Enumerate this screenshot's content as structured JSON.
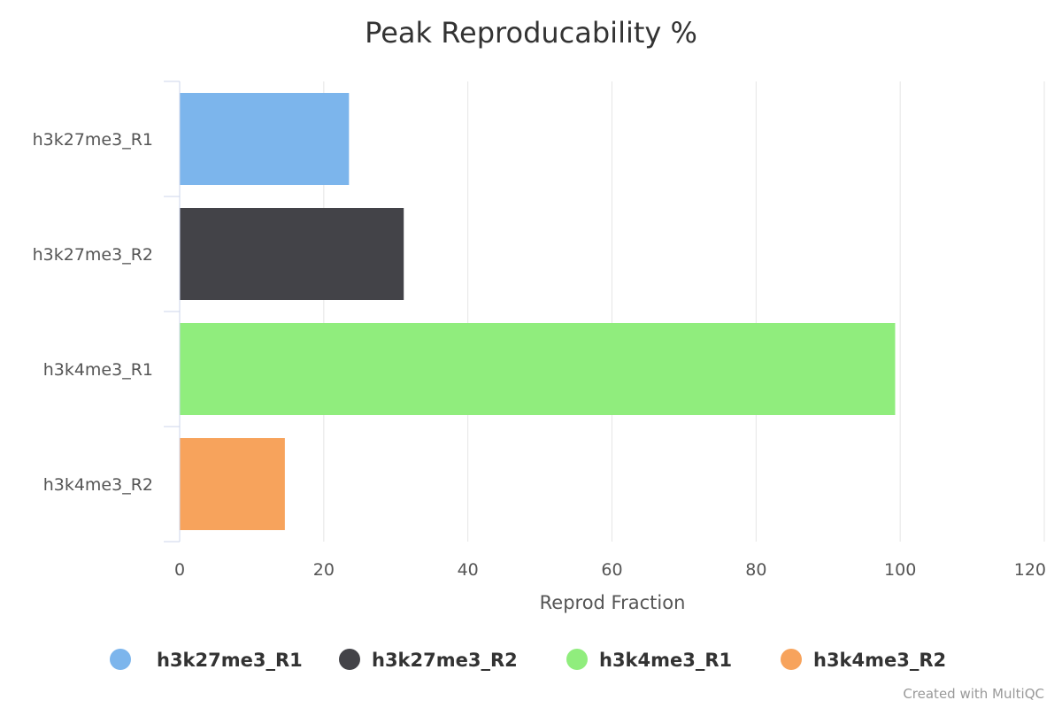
{
  "chart_data": {
    "type": "bar",
    "orientation": "horizontal",
    "title": "Peak Reproducability %",
    "xlabel": "Reprod Fraction",
    "ylabel": "",
    "xlim": [
      0,
      120
    ],
    "xticks": [
      0,
      20,
      40,
      60,
      80,
      100,
      120
    ],
    "categories": [
      "h3k27me3_R1",
      "h3k27me3_R2",
      "h3k4me3_R1",
      "h3k4me3_R2"
    ],
    "values": [
      23.5,
      31.1,
      99.3,
      14.6
    ],
    "colors": [
      "#7cb5ec",
      "#434348",
      "#90ed7d",
      "#f7a35c"
    ],
    "grid": true,
    "legend": {
      "position": "bottom-center",
      "entries": [
        "h3k27me3_R1",
        "h3k27me3_R2",
        "h3k4me3_R1",
        "h3k4me3_R2"
      ]
    }
  },
  "credit": "Created with MultiQC"
}
